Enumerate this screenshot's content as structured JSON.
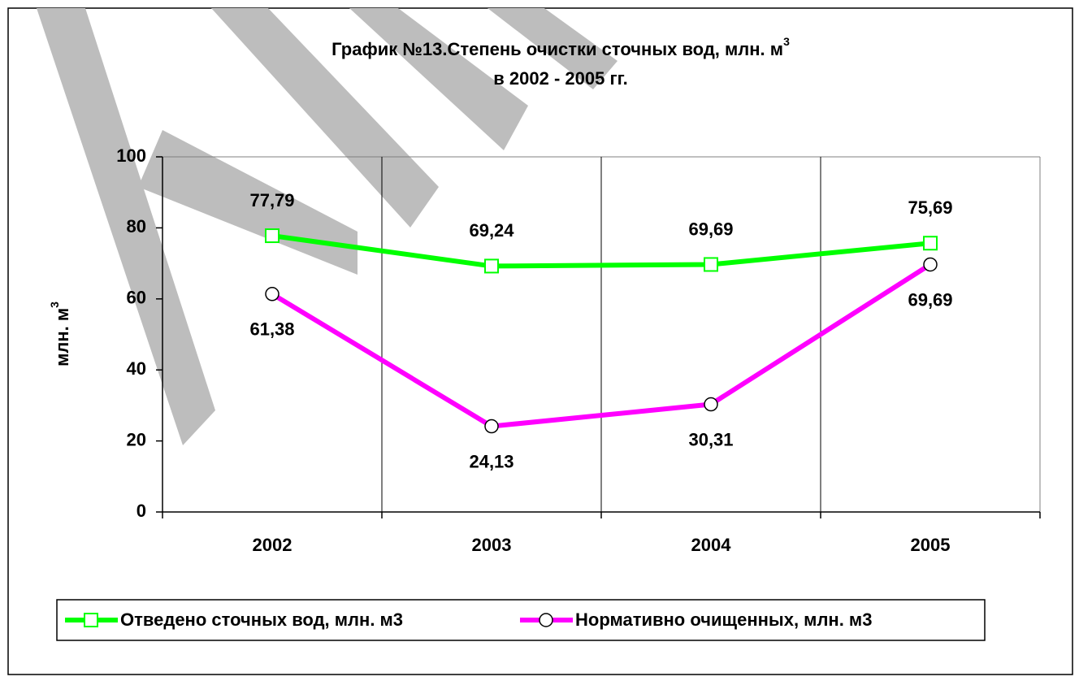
{
  "chart_data": {
    "type": "line",
    "title": "График №13.Степень очистки сточных вод, млн. м",
    "title_superscript": "3",
    "subtitle": "в 2002 - 2005 гг.",
    "ylabel": "млн. м",
    "ylabel_superscript": "3",
    "categories": [
      "2002",
      "2003",
      "2004",
      "2005"
    ],
    "series": [
      {
        "name": "Отведено сточных вод, млн. м3",
        "color": "#00ff00",
        "marker": "square",
        "values": [
          77.79,
          69.24,
          69.69,
          75.69
        ],
        "value_labels": [
          "77,79",
          "69,24",
          "69,69",
          "75,69"
        ]
      },
      {
        "name": "Нормативно очищенных, млн. м3",
        "color": "#ff00ff",
        "marker": "circle",
        "values": [
          61.38,
          24.13,
          30.31,
          69.69
        ],
        "value_labels": [
          "61,38",
          "24,13",
          "30,31",
          "69,69"
        ]
      }
    ],
    "ylim": [
      0,
      100
    ],
    "yticks": [
      0,
      20,
      40,
      60,
      80,
      100
    ],
    "legend": "bottom"
  }
}
